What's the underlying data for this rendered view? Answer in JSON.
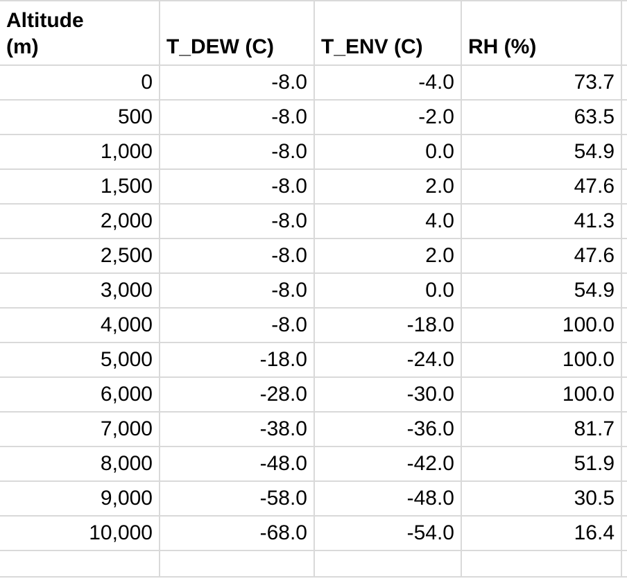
{
  "table": {
    "columns": [
      {
        "label_lines": [
          "Altitude",
          "(m)"
        ]
      },
      {
        "label_lines": [
          "T_DEW (C)"
        ]
      },
      {
        "label_lines": [
          "T_ENV (C)"
        ]
      },
      {
        "label_lines": [
          "RH (%)"
        ]
      }
    ],
    "rows": [
      {
        "altitude_m": "0",
        "t_dew_c": "-8.0",
        "t_env_c": "-4.0",
        "rh_pct": "73.7"
      },
      {
        "altitude_m": "500",
        "t_dew_c": "-8.0",
        "t_env_c": "-2.0",
        "rh_pct": "63.5"
      },
      {
        "altitude_m": "1,000",
        "t_dew_c": "-8.0",
        "t_env_c": "0.0",
        "rh_pct": "54.9"
      },
      {
        "altitude_m": "1,500",
        "t_dew_c": "-8.0",
        "t_env_c": "2.0",
        "rh_pct": "47.6"
      },
      {
        "altitude_m": "2,000",
        "t_dew_c": "-8.0",
        "t_env_c": "4.0",
        "rh_pct": "41.3"
      },
      {
        "altitude_m": "2,500",
        "t_dew_c": "-8.0",
        "t_env_c": "2.0",
        "rh_pct": "47.6"
      },
      {
        "altitude_m": "3,000",
        "t_dew_c": "-8.0",
        "t_env_c": "0.0",
        "rh_pct": "54.9"
      },
      {
        "altitude_m": "4,000",
        "t_dew_c": "-8.0",
        "t_env_c": "-18.0",
        "rh_pct": "100.0"
      },
      {
        "altitude_m": "5,000",
        "t_dew_c": "-18.0",
        "t_env_c": "-24.0",
        "rh_pct": "100.0"
      },
      {
        "altitude_m": "6,000",
        "t_dew_c": "-28.0",
        "t_env_c": "-30.0",
        "rh_pct": "100.0"
      },
      {
        "altitude_m": "7,000",
        "t_dew_c": "-38.0",
        "t_env_c": "-36.0",
        "rh_pct": "81.7"
      },
      {
        "altitude_m": "8,000",
        "t_dew_c": "-48.0",
        "t_env_c": "-42.0",
        "rh_pct": "51.9"
      },
      {
        "altitude_m": "9,000",
        "t_dew_c": "-58.0",
        "t_env_c": "-48.0",
        "rh_pct": "30.5"
      },
      {
        "altitude_m": "10,000",
        "t_dew_c": "-68.0",
        "t_env_c": "-54.0",
        "rh_pct": "16.4"
      }
    ]
  },
  "colors": {
    "gridline": "#d9d9d9",
    "text": "#000000",
    "background": "#ffffff"
  }
}
